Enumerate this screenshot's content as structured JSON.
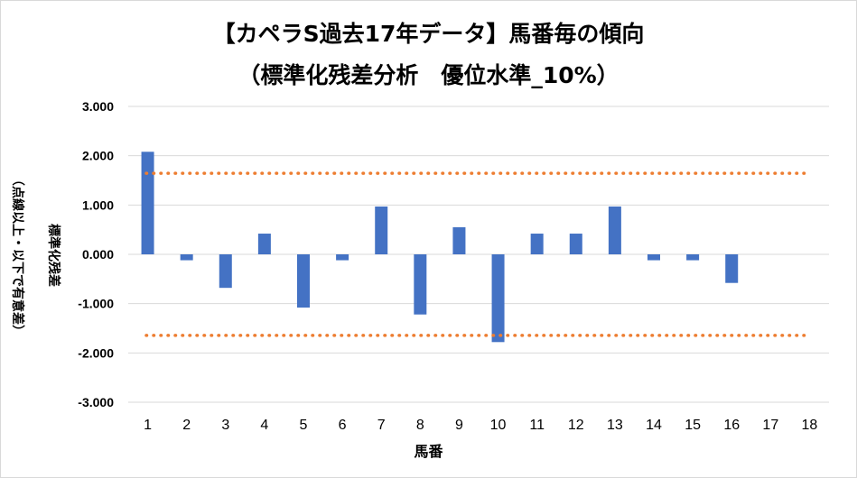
{
  "chart_data": {
    "type": "bar",
    "title": "【カペラS過去17年データ】馬番毎の傾向",
    "subtitle": "（標準化残差分析　優位水準_10%）",
    "xlabel": "馬番",
    "ylabel": "標準化残差",
    "ylabel_note": "（点線以上・以下で有意差）",
    "categories": [
      "1",
      "2",
      "3",
      "4",
      "5",
      "6",
      "7",
      "8",
      "9",
      "10",
      "11",
      "12",
      "13",
      "14",
      "15",
      "16",
      "17",
      "18"
    ],
    "values": [
      2.08,
      -0.12,
      -0.68,
      0.42,
      -1.08,
      -0.12,
      0.97,
      -1.22,
      0.55,
      -1.78,
      0.42,
      0.42,
      0.97,
      -0.12,
      -0.12,
      -0.58,
      0,
      0
    ],
    "ylim": [
      -3,
      3
    ],
    "yticks": [
      "3.000",
      "2.000",
      "1.000",
      "0.000",
      "-1.000",
      "-2.000",
      "-3.000"
    ],
    "ytick_values": [
      3,
      2,
      1,
      0,
      -1,
      -2,
      -3
    ],
    "threshold_lines": [
      1.645,
      -1.645
    ],
    "grid": true,
    "colors": {
      "bar": "#4472C4",
      "threshold": "#ED7D31",
      "grid": "#d9d9d9"
    }
  }
}
